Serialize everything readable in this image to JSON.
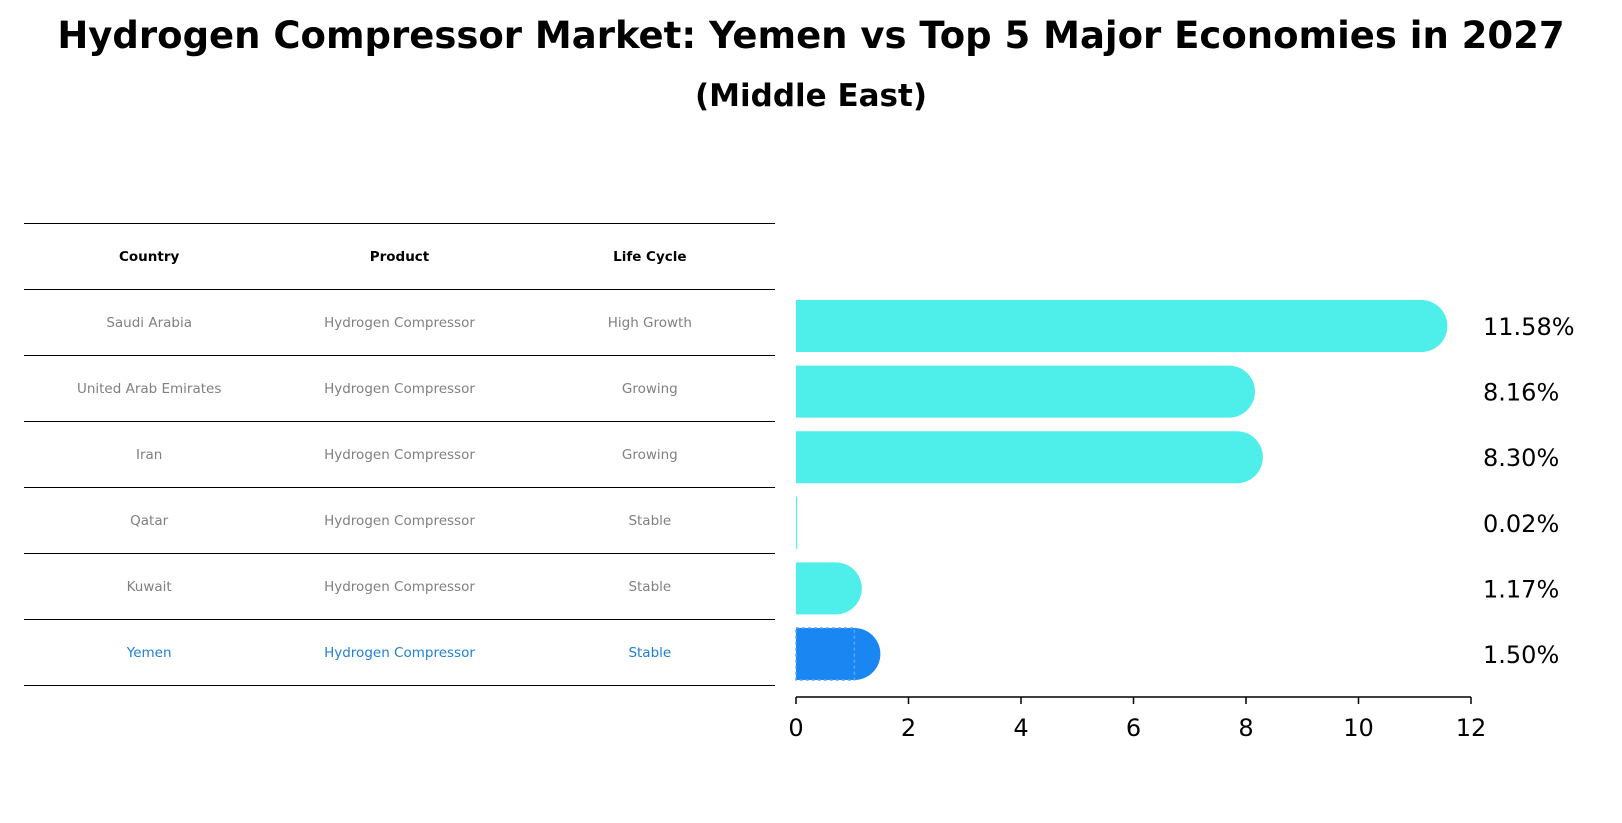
{
  "title": "Hydrogen Compressor Market: Yemen vs Top 5 Major Economies in 2027",
  "subtitle": "(Middle East)",
  "colors": {
    "bar": "#4eeeea",
    "highlight": "#1a86f2",
    "highlight_text": "#1f80d6",
    "muted_text": "#808080"
  },
  "table": {
    "headers": [
      "Country",
      "Product",
      "Life Cycle"
    ],
    "rows": [
      {
        "country": "Saudi Arabia",
        "product": "Hydrogen Compressor",
        "life_cycle": "High Growth"
      },
      {
        "country": "United Arab Emirates",
        "product": "Hydrogen Compressor",
        "life_cycle": "Growing"
      },
      {
        "country": "Iran",
        "product": "Hydrogen Compressor",
        "life_cycle": "Growing"
      },
      {
        "country": "Qatar",
        "product": "Hydrogen Compressor",
        "life_cycle": "Stable"
      },
      {
        "country": "Kuwait",
        "product": "Hydrogen Compressor",
        "life_cycle": "Stable"
      },
      {
        "country": "Yemen",
        "product": "Hydrogen Compressor",
        "life_cycle": "Stable"
      }
    ]
  },
  "chart_data": {
    "type": "bar",
    "orientation": "horizontal",
    "title": "Hydrogen Compressor Market: Yemen vs Top 5 Major Economies in 2027",
    "subtitle": "(Middle East)",
    "categories": [
      "Saudi Arabia",
      "United Arab Emirates",
      "Iran",
      "Qatar",
      "Kuwait",
      "Yemen"
    ],
    "values": [
      11.58,
      8.16,
      8.3,
      0.02,
      1.17,
      1.5
    ],
    "value_labels": [
      "11.58%",
      "8.16%",
      "8.30%",
      "0.02%",
      "1.17%",
      "1.50%"
    ],
    "highlight": "Yemen",
    "xlabel": "",
    "ylabel": "",
    "xlim": [
      0,
      12
    ],
    "xticks": [
      0,
      2,
      4,
      6,
      8,
      10,
      12
    ],
    "xtick_labels": [
      "0",
      "2",
      "4",
      "6",
      "8",
      "10",
      "12"
    ]
  }
}
